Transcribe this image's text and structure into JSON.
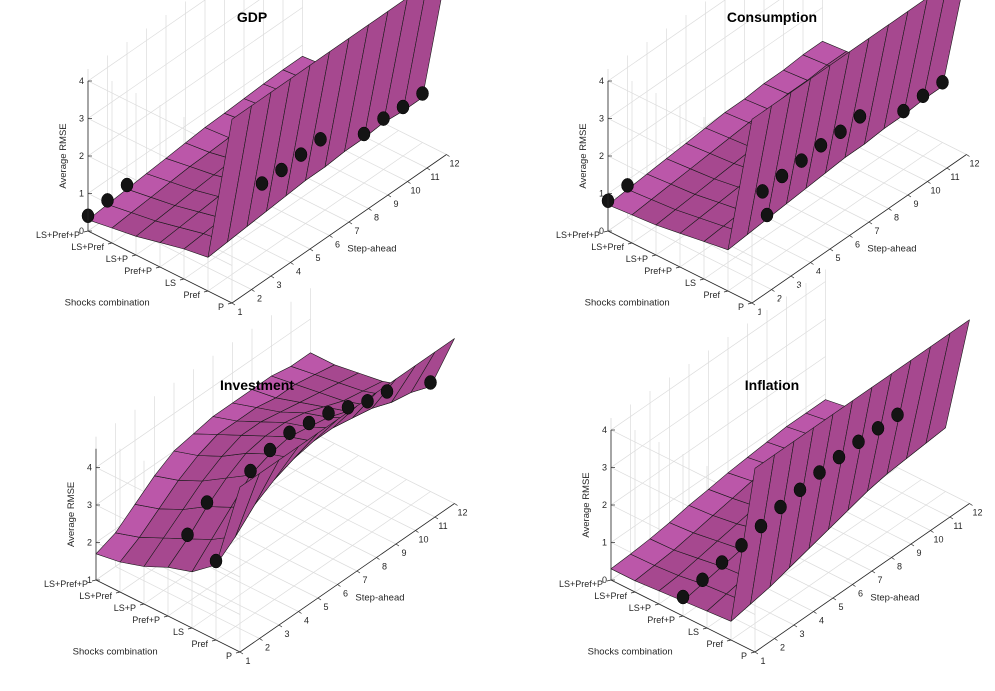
{
  "chart_data": [
    {
      "type": "surface",
      "title": "GDP",
      "xlabel": "Step-ahead",
      "ylabel": "Shocks combination",
      "zlabel": "Average RMSE",
      "x": [
        1,
        2,
        3,
        4,
        5,
        6,
        7,
        8,
        9,
        10,
        11,
        12
      ],
      "y": [
        "P",
        "Pref",
        "LS",
        "Pref+P",
        "LS+P",
        "LS+Pref",
        "LS+Pref+P"
      ],
      "zlim": [
        0,
        4
      ],
      "zticks": [
        0,
        1,
        2,
        3,
        4
      ],
      "grid": true,
      "surface_color": "#b04f9e",
      "values": [
        [
          6.5,
          6.5,
          6.5,
          6.5,
          6.5,
          6.5,
          6.5,
          6.5,
          6.5,
          6.5,
          6.5,
          6.5
        ],
        [
          0.9,
          0.95,
          1.0,
          1.05,
          1.1,
          1.15,
          1.15,
          1.2,
          1.2,
          1.25,
          1.2,
          1.2
        ],
        [
          0.8,
          0.85,
          0.9,
          0.95,
          1.0,
          1.0,
          1.05,
          1.1,
          1.1,
          1.15,
          1.15,
          1.1
        ],
        [
          0.65,
          0.7,
          0.75,
          0.8,
          0.85,
          0.9,
          0.95,
          1.0,
          1.0,
          1.05,
          1.05,
          1.05
        ],
        [
          0.5,
          0.55,
          0.6,
          0.65,
          0.7,
          0.75,
          0.8,
          0.85,
          0.85,
          0.9,
          0.9,
          0.9
        ],
        [
          0.4,
          0.45,
          0.5,
          0.55,
          0.6,
          0.62,
          0.65,
          0.7,
          0.72,
          0.75,
          0.75,
          0.75
        ],
        [
          0.3,
          0.35,
          0.4,
          0.45,
          0.5,
          0.55,
          0.6,
          0.62,
          0.65,
          0.68,
          0.7,
          0.7
        ]
      ],
      "markers": [
        [
          1,
          6
        ],
        [
          2,
          6
        ],
        [
          3,
          6
        ],
        [
          5,
          2
        ],
        [
          6,
          2
        ],
        [
          7,
          2
        ],
        [
          8,
          2
        ],
        [
          9,
          1
        ],
        [
          10,
          1
        ],
        [
          11,
          1
        ],
        [
          12,
          1
        ]
      ]
    },
    {
      "type": "surface",
      "title": "Consumption",
      "xlabel": "Step-ahead",
      "ylabel": "Shocks combination",
      "zlabel": "Average RMSE",
      "x": [
        1,
        2,
        3,
        4,
        5,
        6,
        7,
        8,
        9,
        10,
        11,
        12
      ],
      "y": [
        "P",
        "Pref",
        "LS",
        "Pref+P",
        "LS+P",
        "LS+Pref",
        "LS+Pref+P"
      ],
      "zlim": [
        0,
        4
      ],
      "zticks": [
        0,
        1,
        2,
        3,
        4
      ],
      "grid": true,
      "surface_color": "#b04f9e",
      "values": [
        [
          6.5,
          6.5,
          6.5,
          6.5,
          6.5,
          6.5,
          6.5,
          6.5,
          6.5,
          6.5,
          6.5,
          6.5
        ],
        [
          1.1,
          1.15,
          1.2,
          1.25,
          1.3,
          1.35,
          1.4,
          1.4,
          1.45,
          1.45,
          1.5,
          1.5
        ],
        [
          1.0,
          1.05,
          1.1,
          1.15,
          1.2,
          1.25,
          1.3,
          1.3,
          1.35,
          1.35,
          1.4,
          1.4
        ],
        [
          0.9,
          0.95,
          1.0,
          1.05,
          1.1,
          1.15,
          1.2,
          1.2,
          1.25,
          1.25,
          1.3,
          1.3
        ],
        [
          0.8,
          0.85,
          0.9,
          0.95,
          1.0,
          1.05,
          1.1,
          1.1,
          1.15,
          1.15,
          1.2,
          1.2
        ],
        [
          0.75,
          0.8,
          0.85,
          0.9,
          0.95,
          1.0,
          1.05,
          1.05,
          1.1,
          1.1,
          1.15,
          1.15
        ],
        [
          0.7,
          0.75,
          0.8,
          0.85,
          0.9,
          0.95,
          1.0,
          1.0,
          1.05,
          1.05,
          1.1,
          1.1
        ]
      ],
      "markers": [
        [
          1,
          6
        ],
        [
          2,
          6
        ],
        [
          3,
          1
        ],
        [
          4,
          2
        ],
        [
          5,
          2
        ],
        [
          6,
          2
        ],
        [
          7,
          2
        ],
        [
          8,
          2
        ],
        [
          9,
          2
        ],
        [
          10,
          1
        ],
        [
          11,
          1
        ],
        [
          12,
          1
        ]
      ]
    },
    {
      "type": "surface",
      "title": "Investment",
      "xlabel": "Step-ahead",
      "ylabel": "Shocks combination",
      "zlabel": "Average RMSE",
      "x": [
        1,
        2,
        3,
        4,
        5,
        6,
        7,
        8,
        9,
        10,
        11,
        12
      ],
      "y": [
        "P",
        "Pref",
        "LS",
        "Pref+P",
        "LS+P",
        "LS+Pref",
        "LS+Pref+P"
      ],
      "zlim": [
        1,
        4.5
      ],
      "zticks": [
        1,
        2,
        3,
        4
      ],
      "grid": true,
      "surface_color": "#b04f9e",
      "values": [
        [
          6.5,
          6.5,
          6.5,
          6.5,
          6.5,
          6.5,
          6.5,
          6.5,
          6.5,
          6.5,
          6.5,
          6.5
        ],
        [
          3.0,
          3.4,
          3.9,
          4.2,
          4.4,
          4.5,
          4.5,
          4.4,
          4.3,
          4.1,
          4.0,
          3.8
        ],
        [
          2.5,
          3.0,
          3.5,
          4.0,
          4.2,
          4.3,
          4.2,
          4.1,
          3.9,
          3.7,
          3.6,
          3.5
        ],
        [
          2.3,
          2.7,
          3.2,
          3.6,
          3.9,
          4.0,
          4.0,
          3.9,
          3.7,
          3.5,
          3.4,
          3.3
        ],
        [
          2.0,
          2.4,
          2.8,
          3.2,
          3.5,
          3.7,
          3.7,
          3.6,
          3.5,
          3.4,
          3.3,
          3.2
        ],
        [
          1.8,
          2.1,
          2.5,
          2.9,
          3.2,
          3.4,
          3.4,
          3.4,
          3.3,
          3.3,
          3.2,
          3.1
        ],
        [
          1.7,
          1.9,
          2.3,
          2.7,
          3.0,
          3.1,
          3.2,
          3.2,
          3.2,
          3.2,
          3.1,
          3.1
        ]
      ],
      "markers": [
        [
          1,
          1
        ],
        [
          2,
          3
        ],
        [
          3,
          3
        ],
        [
          4,
          2
        ],
        [
          5,
          2
        ],
        [
          6,
          2
        ],
        [
          7,
          2
        ],
        [
          8,
          2
        ],
        [
          9,
          2
        ],
        [
          10,
          2
        ],
        [
          11,
          2
        ],
        [
          12,
          1
        ]
      ]
    },
    {
      "type": "surface",
      "title": "Inflation",
      "xlabel": "Step-ahead",
      "ylabel": "Shocks combination",
      "zlabel": "Average RMSE",
      "x": [
        1,
        2,
        3,
        4,
        5,
        6,
        7,
        8,
        9,
        10,
        11,
        12
      ],
      "y": [
        "P",
        "Pref",
        "LS",
        "Pref+P",
        "LS+P",
        "LS+Pref",
        "LS+Pref+P"
      ],
      "zlim": [
        0,
        4
      ],
      "zticks": [
        0,
        1,
        2,
        3,
        4
      ],
      "grid": true,
      "surface_color": "#b04f9e",
      "values": [
        [
          6.5,
          6.5,
          6.5,
          6.5,
          6.5,
          6.5,
          6.5,
          6.5,
          6.5,
          6.5,
          6.5,
          6.5
        ],
        [
          0.5,
          0.6,
          0.7,
          0.85,
          1.0,
          1.15,
          1.3,
          1.45,
          1.55,
          1.6,
          1.65,
          1.7
        ],
        [
          0.45,
          0.55,
          0.65,
          0.8,
          0.95,
          1.1,
          1.25,
          1.35,
          1.45,
          1.5,
          1.5,
          1.5
        ],
        [
          0.4,
          0.5,
          0.6,
          0.7,
          0.85,
          1.0,
          1.1,
          1.2,
          1.25,
          1.3,
          1.3,
          1.3
        ],
        [
          0.35,
          0.4,
          0.5,
          0.6,
          0.7,
          0.8,
          0.9,
          1.0,
          1.05,
          1.1,
          1.1,
          1.1
        ],
        [
          0.3,
          0.35,
          0.4,
          0.5,
          0.6,
          0.7,
          0.8,
          0.85,
          0.9,
          0.95,
          0.95,
          0.95
        ],
        [
          0.3,
          0.33,
          0.38,
          0.45,
          0.55,
          0.62,
          0.7,
          0.75,
          0.8,
          0.85,
          0.85,
          0.85
        ]
      ],
      "markers": [
        [
          1,
          3
        ],
        [
          2,
          3
        ],
        [
          3,
          3
        ],
        [
          4,
          3
        ],
        [
          5,
          3
        ],
        [
          6,
          3
        ],
        [
          7,
          3
        ],
        [
          8,
          3
        ],
        [
          9,
          3
        ],
        [
          10,
          3
        ],
        [
          11,
          3
        ],
        [
          12,
          3
        ]
      ]
    }
  ]
}
